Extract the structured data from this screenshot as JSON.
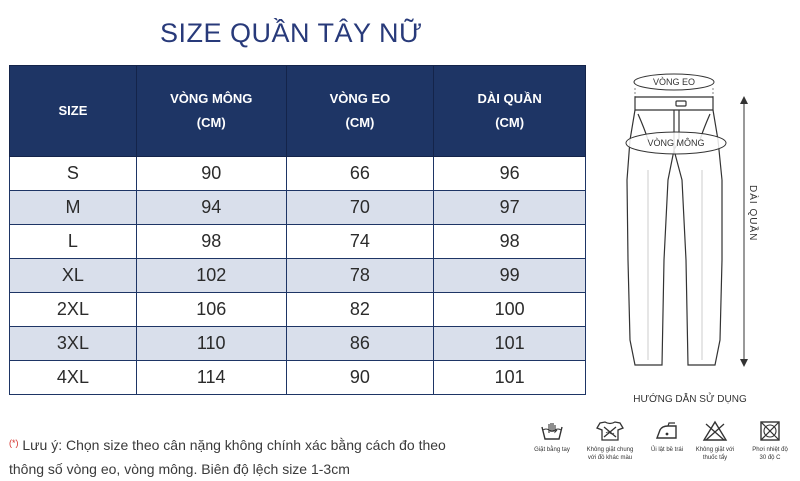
{
  "title": "SIZE QUẦN TÂY NỮ",
  "table": {
    "headers": [
      {
        "line1": "SIZE",
        "line2": ""
      },
      {
        "line1": "VÒNG MÔNG",
        "line2": "(CM)"
      },
      {
        "line1": "VÒNG EO",
        "line2": "(CM)"
      },
      {
        "line1": "DÀI QUẦN",
        "line2": "(CM)"
      }
    ],
    "rows": [
      [
        "S",
        "90",
        "66",
        "96"
      ],
      [
        "M",
        "94",
        "70",
        "97"
      ],
      [
        "L",
        "98",
        "74",
        "98"
      ],
      [
        "XL",
        "102",
        "78",
        "99"
      ],
      [
        "2XL",
        "106",
        "82",
        "100"
      ],
      [
        "3XL",
        "110",
        "86",
        "101"
      ],
      [
        "4XL",
        "114",
        "90",
        "101"
      ]
    ]
  },
  "note": {
    "marker": "(*)",
    "line1": "Lưu ý: Chọn size theo cân nặng không chính xác bằng cách đo theo",
    "line2": "thông số vòng eo, vòng mông. Biên độ lệch size 1-3cm"
  },
  "diagram": {
    "waist_label": "VÒNG EO",
    "hip_label": "VÒNG MÔNG",
    "length_label": "DÀI QUẦN",
    "line_color": "#333333"
  },
  "guide_title": "HƯỚNG DẪN SỬ DỤNG",
  "care": [
    {
      "icon": "hand-wash-icon",
      "label1": "Giặt bằng tay",
      "label2": ""
    },
    {
      "icon": "wash-separately-icon",
      "label1": "Không giặt chung",
      "label2": "với đồ khác màu"
    },
    {
      "icon": "iron-reverse-icon",
      "label1": "Ủi lật bề trái",
      "label2": ""
    },
    {
      "icon": "no-bleach-icon",
      "label1": "Không giặt với",
      "label2": "thuốc tẩy"
    },
    {
      "icon": "tumble-dry-icon",
      "label1": "Phơi nhiệt độ",
      "label2": "30 độ C"
    }
  ],
  "colors": {
    "header": "#1e3565",
    "row_alt": "#d9dfeb",
    "title": "#283a7a"
  }
}
